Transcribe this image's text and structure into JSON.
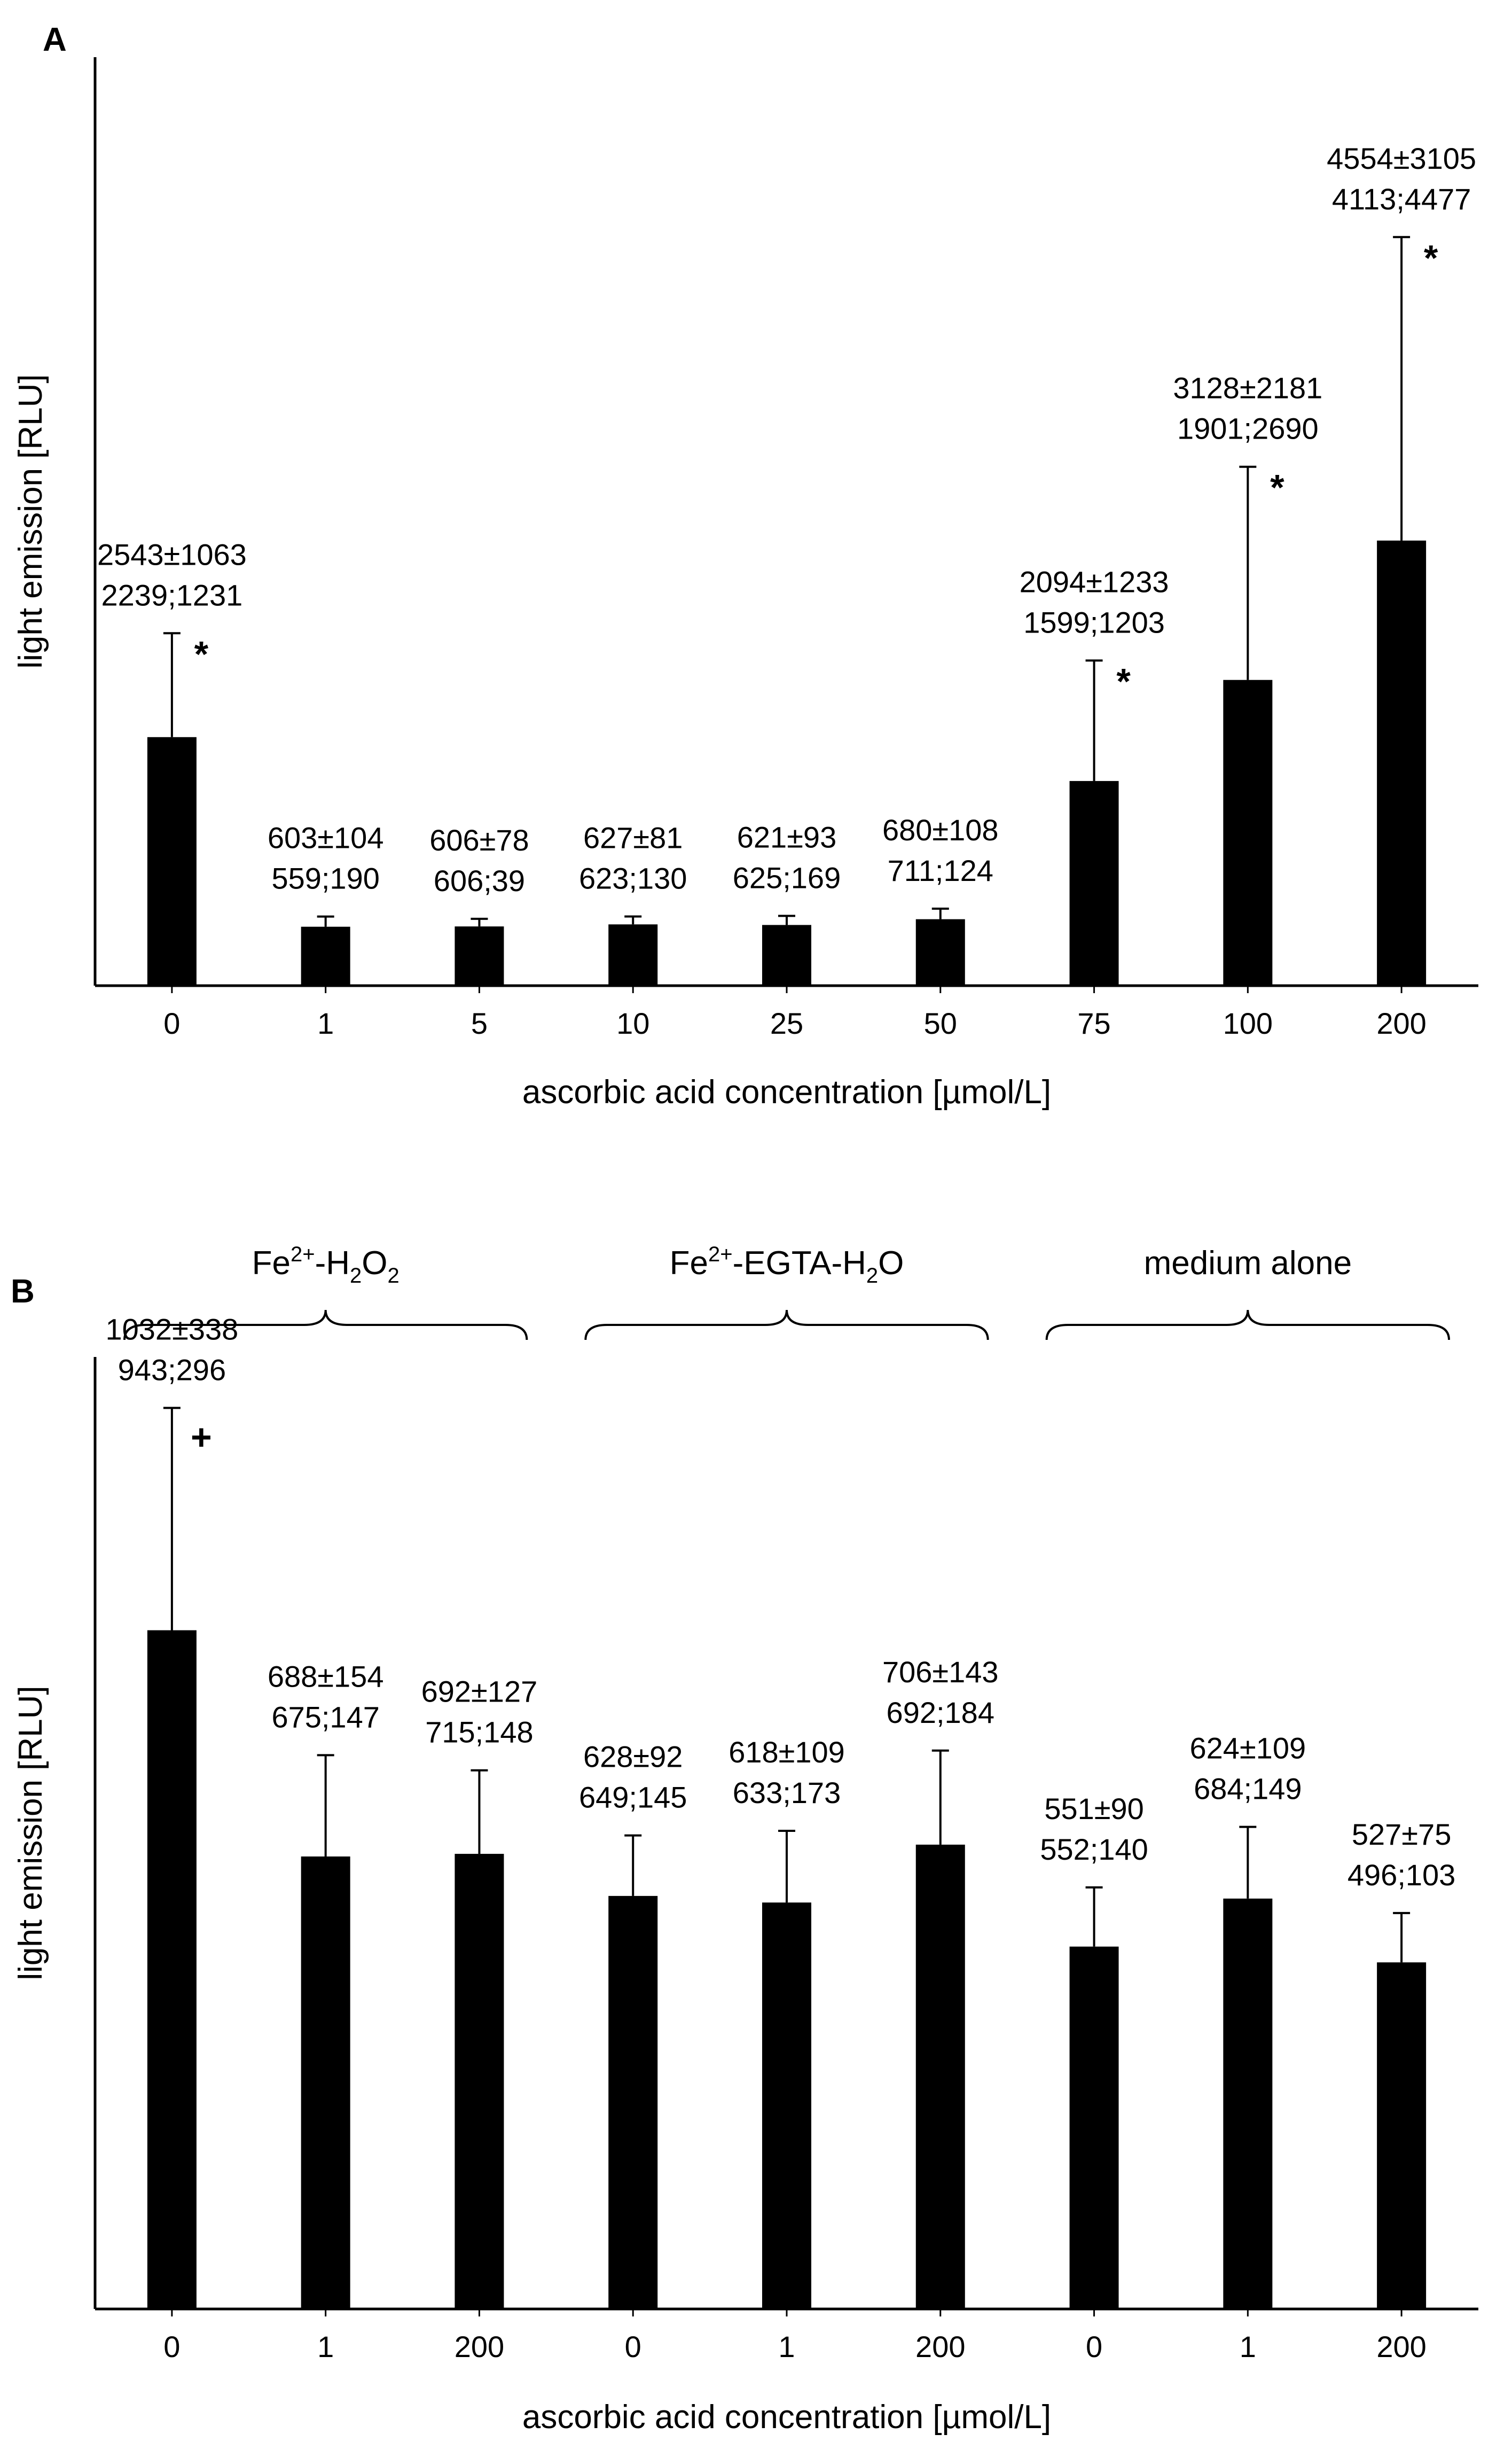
{
  "chart_data": [
    {
      "panel": "A",
      "type": "bar",
      "xlabel": "ascorbic acid concentration [µmol/L]",
      "ylabel": "light emission [RLU]",
      "categories": [
        "0",
        "1",
        "5",
        "10",
        "25",
        "50",
        "75",
        "100",
        "200"
      ],
      "values": [
        2543,
        603,
        606,
        627,
        621,
        680,
        2094,
        3128,
        4554
      ],
      "errors": [
        1063,
        104,
        78,
        81,
        93,
        108,
        1233,
        2181,
        3105
      ],
      "labels_top": [
        "2543±1063",
        "603±104",
        "606±78",
        "627±81",
        "621±93",
        "680±108",
        "2094±1233",
        "3128±2181",
        "4554±3105"
      ],
      "labels_bottom": [
        "2239;1231",
        "559;190",
        "606;39",
        "623;130",
        "625;169",
        "711;124",
        "1599;1203",
        "1901;2690",
        "4113;4477"
      ],
      "markers": [
        "*",
        "",
        "",
        "",
        "",
        "",
        "*",
        "*",
        "*"
      ],
      "ylim": [
        0,
        9500
      ]
    },
    {
      "panel": "B",
      "type": "bar",
      "xlabel": "ascorbic acid concentration [µmol/L]",
      "ylabel": "light emission [RLU]",
      "groups": [
        {
          "name_main": "Fe",
          "name_sup": "2+",
          "name_mid": "-H",
          "name_sub": "2",
          "name_mid2": "O",
          "name_sub2": "2",
          "name_tail": ""
        },
        {
          "name_main": "Fe",
          "name_sup": "2+",
          "name_mid": "-EGTA-H",
          "name_sub": "2",
          "name_mid2": "O",
          "name_sub2": "",
          "name_tail": ""
        },
        {
          "name_main": "medium alone",
          "name_sup": "",
          "name_mid": "",
          "name_sub": "",
          "name_mid2": "",
          "name_sub2": "",
          "name_tail": ""
        }
      ],
      "categories": [
        "0",
        "1",
        "200",
        "0",
        "1",
        "200",
        "0",
        "1",
        "200"
      ],
      "values": [
        1032,
        688,
        692,
        628,
        618,
        706,
        551,
        624,
        527
      ],
      "errors": [
        338,
        154,
        127,
        92,
        109,
        143,
        90,
        109,
        75
      ],
      "labels_top": [
        "1032±338",
        "688±154",
        "692±127",
        "628±92",
        "618±109",
        "706±143",
        "551±90",
        "624±109",
        "527±75"
      ],
      "labels_bottom": [
        "943;296",
        "675;147",
        "715;148",
        "649;145",
        "633;173",
        "692;184",
        "552;140",
        "684;149",
        "496;103"
      ],
      "markers": [
        "+",
        "",
        "",
        "",
        "",
        "",
        "",
        "",
        ""
      ],
      "ylim": [
        0,
        1480
      ]
    }
  ]
}
